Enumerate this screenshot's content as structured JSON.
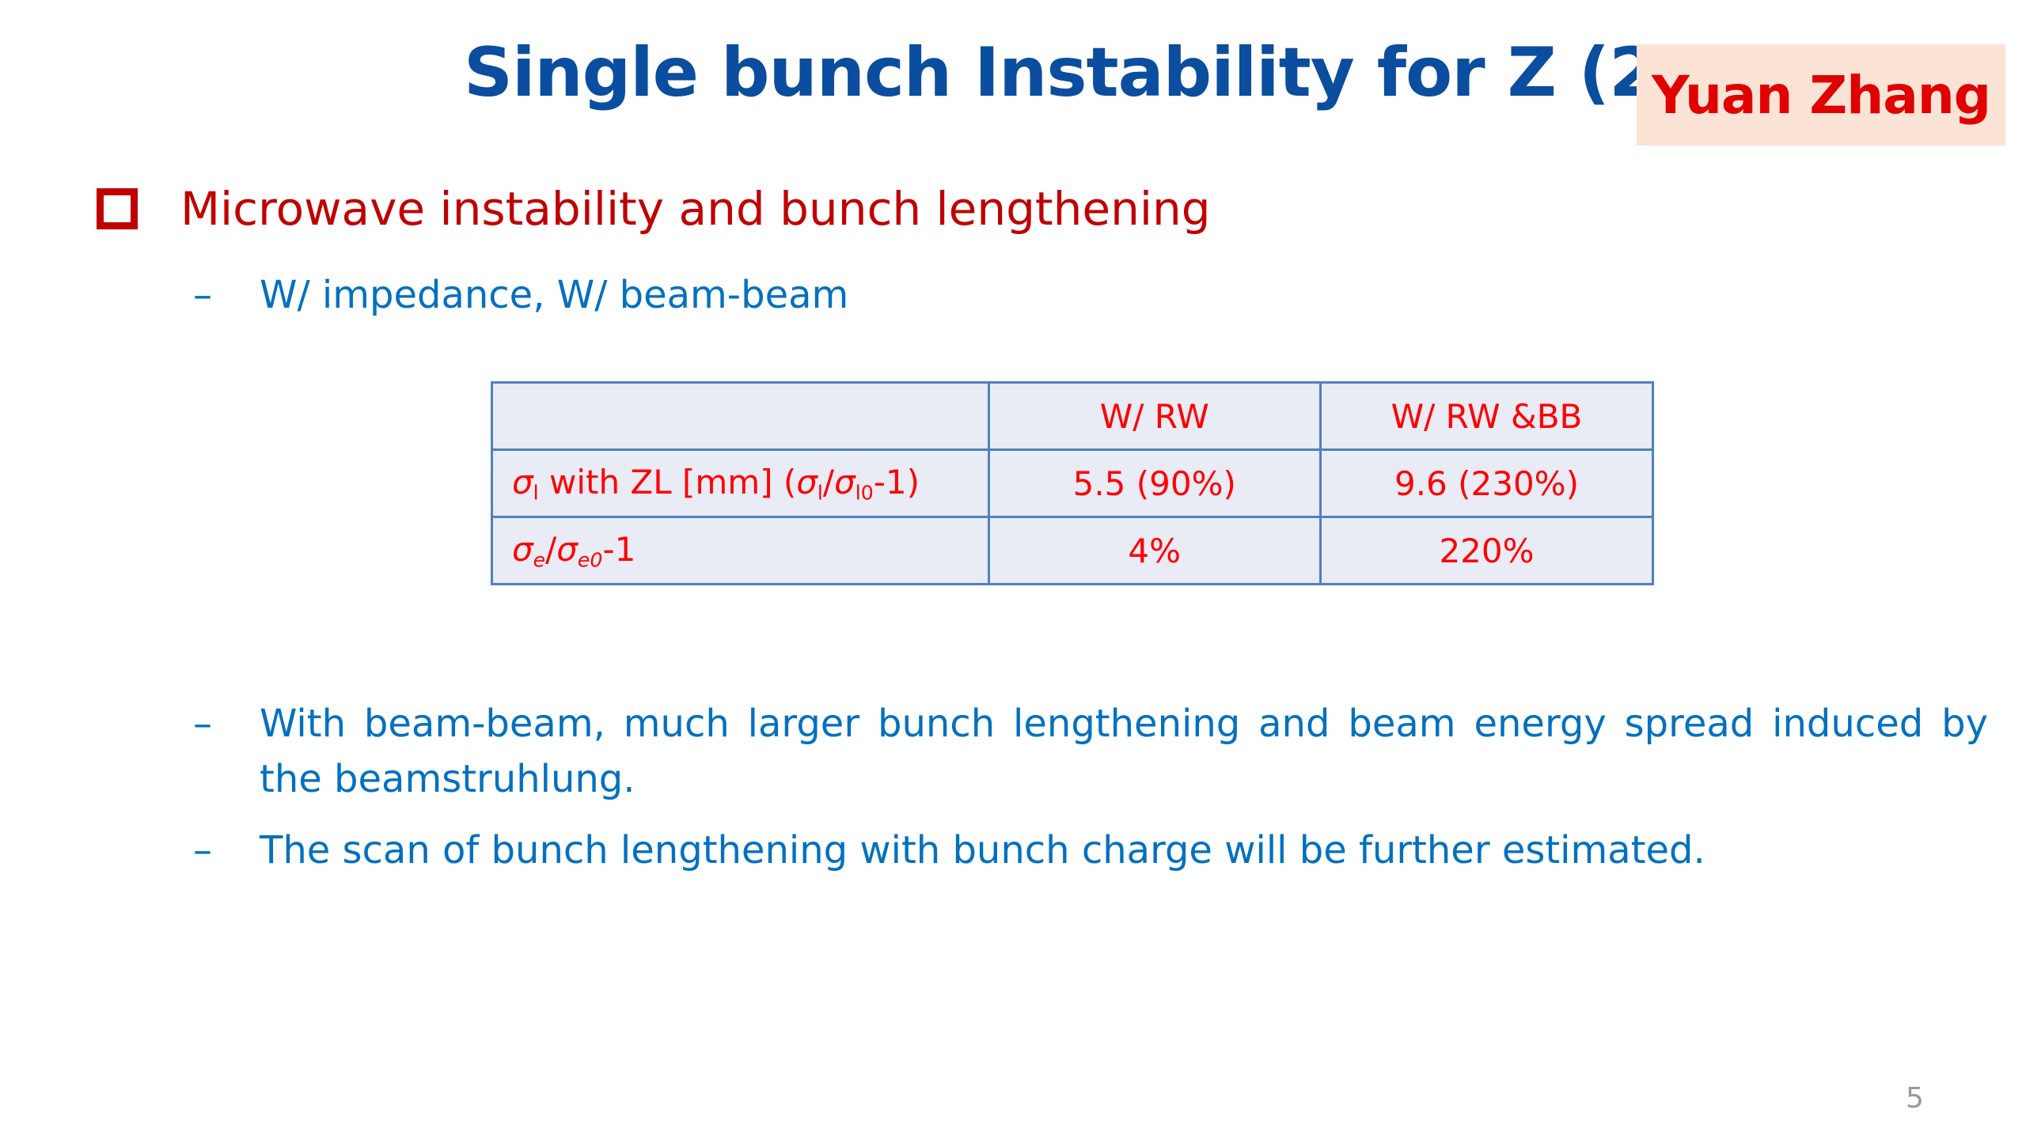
{
  "slide": {
    "title": "Single bunch Instability for Z (2)",
    "author": "Yuan Zhang",
    "page_number": "5"
  },
  "bullets": {
    "main": "Microwave instability and bunch lengthening",
    "dash": "–",
    "sub1": "W/ impedance, W/ beam-beam",
    "sub2": "With beam-beam, much larger bunch lengthening and beam energy spread induced by the beamstruhlung.",
    "sub3": "The scan of bunch lengthening with bunch charge will be further estimated."
  },
  "table": {
    "headers": [
      "",
      "W/ RW",
      "W/ RW &BB"
    ],
    "rows": [
      {
        "label": {
          "sigma": "σ",
          "sub_l": "l",
          "text1": " with ZL [mm] (",
          "sub_l2": "l",
          "slash": "/",
          "sub_l0": "l0",
          "text2": "-1)"
        },
        "values": [
          "5.5 (90%)",
          "9.6 (230%)"
        ]
      },
      {
        "label": {
          "sigma": "σ",
          "sub_e": "e",
          "slash": "/",
          "sub_e0": "e0",
          "text": "-1"
        },
        "values": [
          "4%",
          "220%"
        ]
      }
    ]
  },
  "colors": {
    "title": "#0b4d9e",
    "author": "#e00000",
    "author_bg": "#fbe4d5",
    "main_bullet": "#c00000",
    "sub_bullet": "#0070c0",
    "table_text": "#ff0000",
    "table_border": "#4f81bd",
    "table_bg": "#e9ebf5"
  }
}
